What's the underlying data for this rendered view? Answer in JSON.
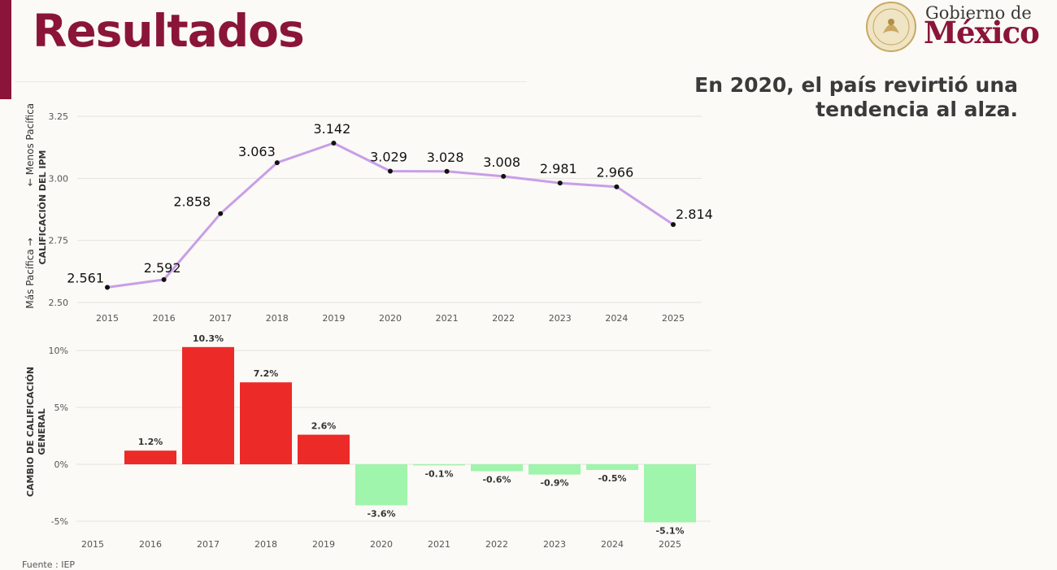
{
  "page": {
    "title": "Resultados",
    "headline_line1": "En 2020, el país revirtió una",
    "headline_line2": "tendencia al alza.",
    "source": "Fuente : IEP",
    "logo_line1": "Gobierno de",
    "logo_line2": "México"
  },
  "colors": {
    "brand": "#8a1538",
    "line": "#c99ee8",
    "bar_up": "#ec2a28",
    "bar_down": "#9ff5ab",
    "grid": "#e6e3dc"
  },
  "chart_data": [
    {
      "type": "line",
      "ylabel_main": "CALIFICACIÓN DEL IPM",
      "ylabel_top": "Menos Pacífica",
      "ylabel_bottom": "Más Pacífica",
      "ylim": [
        2.5,
        3.25
      ],
      "yticks": [
        "2.50",
        "2.75",
        "3.00",
        "3.25"
      ],
      "grid": true,
      "x": [
        "2015",
        "2016",
        "2017",
        "2018",
        "2019",
        "2020",
        "2021",
        "2022",
        "2023",
        "2024",
        "2025"
      ],
      "values": [
        2.561,
        2.592,
        2.858,
        3.063,
        3.142,
        3.029,
        3.028,
        3.008,
        2.981,
        2.966,
        2.814
      ],
      "labels": [
        "2.561",
        "2.592",
        "2.858",
        "3.063",
        "3.142",
        "3.029",
        "3.028",
        "3.008",
        "2.981",
        "2.966",
        "2.814"
      ]
    },
    {
      "type": "bar",
      "ylabel": "CAMBIO DE CALIFICACIÓN GENERAL",
      "ylim": [
        -5,
        10
      ],
      "yticks": [
        "-5%",
        "0%",
        "5%",
        "10%"
      ],
      "grid": true,
      "categories": [
        "2015",
        "2016",
        "2017",
        "2018",
        "2019",
        "2020",
        "2021",
        "2022",
        "2023",
        "2024",
        "2025"
      ],
      "values": [
        null,
        1.2,
        10.3,
        7.2,
        2.6,
        -3.6,
        -0.1,
        -0.6,
        -0.9,
        -0.5,
        -5.1
      ],
      "labels": [
        "",
        "1.2%",
        "10.3%",
        "7.2%",
        "2.6%",
        "-3.6%",
        "-0.1%",
        "-0.6%",
        "-0.9%",
        "-0.5%",
        "-5.1%"
      ]
    }
  ]
}
